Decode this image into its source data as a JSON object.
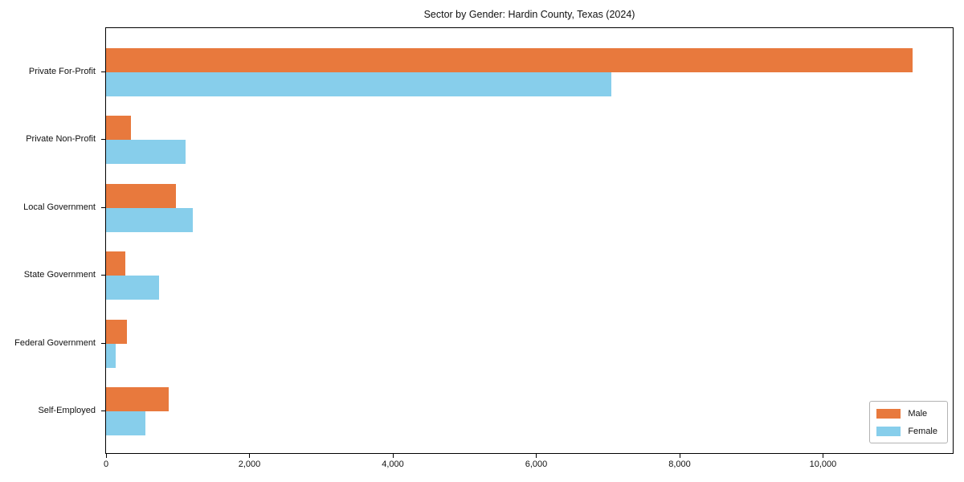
{
  "chart_data": {
    "type": "bar",
    "orientation": "horizontal",
    "title": "Sector by Gender: Hardin County, Texas (2024)",
    "xlabel": "",
    "ylabel": "",
    "categories": [
      "Private For-Profit",
      "Private Non-Profit",
      "Local Government",
      "State Government",
      "Federal Government",
      "Self-Employed"
    ],
    "series": [
      {
        "name": "Male",
        "color": "#E8793D",
        "values": [
          11250,
          350,
          970,
          265,
          290,
          870
        ]
      },
      {
        "name": "Female",
        "color": "#87CEEB",
        "values": [
          7050,
          1110,
          1215,
          745,
          135,
          550
        ]
      }
    ],
    "xlim": [
      0,
      11810
    ],
    "xticks": [
      0,
      2000,
      4000,
      6000,
      8000,
      10000
    ],
    "xtick_labels": [
      "0",
      "2,000",
      "4,000",
      "6,000",
      "8,000",
      "10,000"
    ],
    "grid": false,
    "legend_position": "lower right",
    "background_color": "#ffffff",
    "axis_color": "#000000",
    "legend_border_color": "#b3b3b3"
  }
}
